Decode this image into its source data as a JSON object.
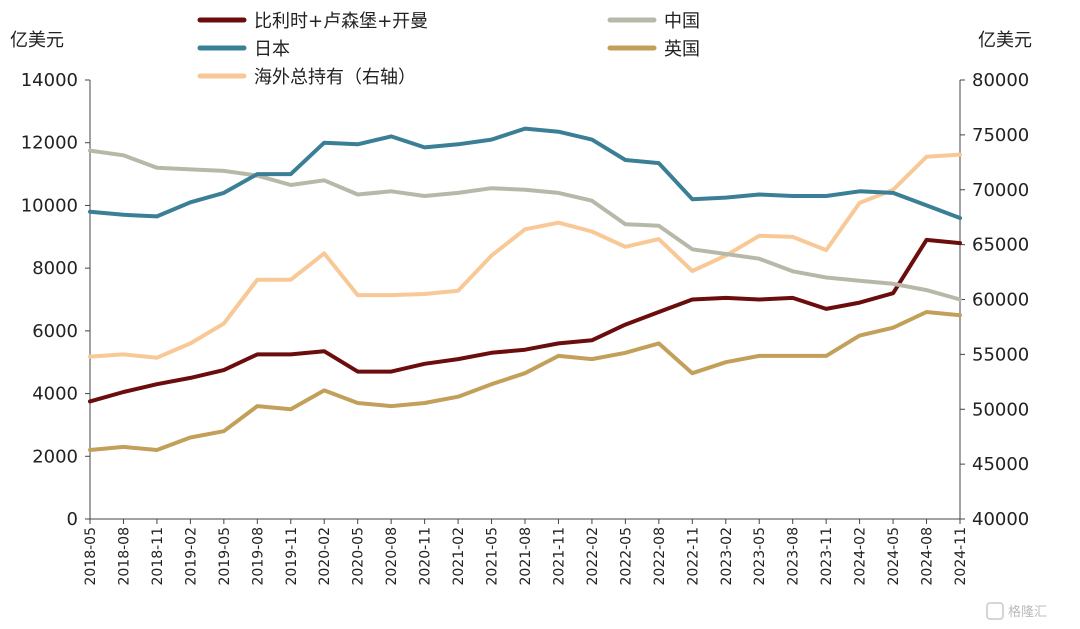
{
  "units": {
    "left": "亿美元",
    "right": "亿美元"
  },
  "watermark": {
    "text": "格隆汇"
  },
  "chart_data": {
    "type": "line",
    "x": [
      "2018-05",
      "2018-08",
      "2018-11",
      "2019-02",
      "2019-05",
      "2019-08",
      "2019-11",
      "2020-02",
      "2020-05",
      "2020-08",
      "2020-11",
      "2021-02",
      "2021-05",
      "2021-08",
      "2021-11",
      "2022-02",
      "2022-05",
      "2022-08",
      "2022-11",
      "2023-02",
      "2023-05",
      "2023-08",
      "2023-11",
      "2024-02",
      "2024-05",
      "2024-08",
      "2024-11"
    ],
    "x_labels": [
      "2018-05",
      "2018-08",
      "2018-11",
      "2019-02",
      "2019-05",
      "2019-08",
      "2019-11",
      "2020-02",
      "2020-05",
      "2020-08",
      "2020-11",
      "2021-02",
      "2021-05",
      "2021-08",
      "2021-11",
      "2022-02",
      "2022-05",
      "2022-08",
      "2022-11",
      "2023-02",
      "2023-05",
      "2023-08",
      "2023-11",
      "2024-02",
      "2024-05",
      "2024-08",
      "2024-11"
    ],
    "y_left": {
      "min": 0,
      "max": 14000,
      "ticks": [
        0,
        2000,
        4000,
        6000,
        8000,
        10000,
        12000,
        14000
      ]
    },
    "y_right": {
      "min": 40000,
      "max": 80000,
      "ticks": [
        40000,
        45000,
        50000,
        55000,
        60000,
        65000,
        70000,
        75000,
        80000
      ]
    },
    "legend": "top",
    "series": [
      {
        "name": "比利时+卢森堡+开曼",
        "axis": "left",
        "color": "#6b0d0d",
        "values": [
          3750,
          4050,
          4300,
          4500,
          4750,
          5250,
          5250,
          5350,
          4700,
          4700,
          4950,
          5100,
          5300,
          5400,
          5600,
          5700,
          6200,
          6600,
          7000,
          7050,
          7000,
          7050,
          6700,
          6900,
          7200,
          8900,
          8800
        ]
      },
      {
        "name": "中国",
        "axis": "left",
        "color": "#b8b8a8",
        "values": [
          11750,
          11600,
          11200,
          11150,
          11100,
          10950,
          10650,
          10800,
          10350,
          10450,
          10300,
          10400,
          10550,
          10500,
          10400,
          10150,
          9400,
          9350,
          8600,
          8450,
          8300,
          7900,
          7700,
          7600,
          7500,
          7300,
          7000
        ]
      },
      {
        "name": "日本",
        "axis": "left",
        "color": "#3a7f96",
        "values": [
          9800,
          9700,
          9650,
          10100,
          10400,
          11000,
          11000,
          12000,
          11950,
          12200,
          11850,
          11950,
          12100,
          12450,
          12350,
          12100,
          11450,
          11350,
          10200,
          10250,
          10350,
          10300,
          10300,
          10450,
          10400,
          10000,
          9600
        ]
      },
      {
        "name": "英国",
        "axis": "left",
        "color": "#c2a05a",
        "values": [
          2200,
          2300,
          2200,
          2600,
          2800,
          3600,
          3500,
          4100,
          3700,
          3600,
          3700,
          3900,
          4300,
          4650,
          5200,
          5100,
          5300,
          5600,
          4650,
          5000,
          5200,
          5200,
          5200,
          5850,
          6100,
          6600,
          6500
        ]
      },
      {
        "name": "海外总持有（右轴）",
        "axis": "right",
        "color": "#f8c996",
        "values": [
          54800,
          55000,
          54700,
          56000,
          57800,
          61800,
          61800,
          64200,
          60400,
          60400,
          60500,
          60800,
          64000,
          66400,
          67000,
          66200,
          64800,
          65500,
          62600,
          64000,
          65800,
          65700,
          64500,
          68800,
          70000,
          73000,
          73200
        ]
      }
    ]
  }
}
